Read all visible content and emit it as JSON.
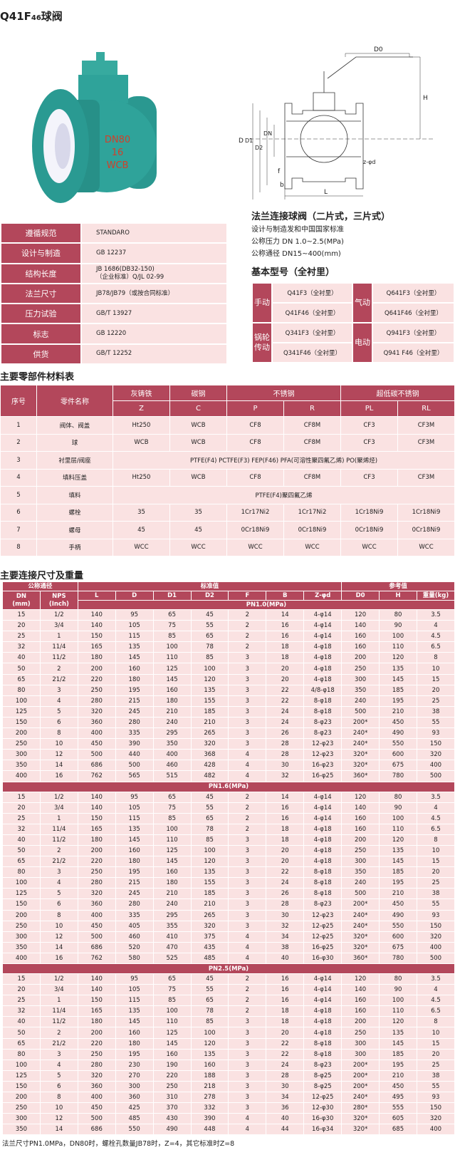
{
  "title": {
    "main": "Q41F",
    "sub": "46",
    "suffix": "球阀"
  },
  "photo": {
    "markings": [
      "DN80",
      "16",
      "WCB"
    ],
    "colors": {
      "body": "#2fa39a",
      "lining": "#f4f4fb",
      "marking": "#d0402a"
    }
  },
  "drawing": {
    "labels": {
      "d0": "D0",
      "h": "H",
      "d": "D",
      "d1": "D1",
      "d2": "D2",
      "dn": "DN",
      "f": "f",
      "b": "b",
      "l": "L",
      "zd": "z-φd"
    }
  },
  "spec": {
    "rows": [
      {
        "label": "遵循规范",
        "value": "STANDARO"
      },
      {
        "label": "设计与制造",
        "value": "GB 12237"
      },
      {
        "label": "结构长度",
        "value": "JB 1686(DB32-150)\n（企业标准）Q/JL 02-99"
      },
      {
        "label": "法兰尺寸",
        "value": "JB78/JB79（或按合同标准）"
      },
      {
        "label": "压力试验",
        "value": "GB/T 13927"
      },
      {
        "label": "标志",
        "value": "GB 12220"
      },
      {
        "label": "供货",
        "value": "GB/T 12252"
      }
    ]
  },
  "intro": {
    "heading": "法兰连接球阀（二片式，三片式）",
    "lines": [
      "设计与制造发和中国国家标准",
      "公称压力 DN 1.0~2.5(MPa)",
      "公称通径 DN15~400(mm)"
    ],
    "models_heading": "基本型号（全衬里）"
  },
  "models": [
    {
      "left_label": "手动",
      "left": [
        "Q41F3（全衬里）",
        "Q41F46（全衬里）"
      ],
      "right_label": "气动",
      "right": [
        "Q641F3（全衬里）",
        "Q641F46（全衬里）"
      ]
    },
    {
      "left_label": "锅轮传动",
      "left": [
        "Q341F3（全衬里）",
        "Q341F46（全衬里）"
      ],
      "right_label": "电动",
      "right": [
        "Q941F3（全衬里）",
        "Q941 F46（全衬里）"
      ]
    }
  ],
  "materials": {
    "heading": "主要零部件材料表",
    "header1": [
      "序号",
      "零件名称",
      "灰铸铁",
      "碳钢",
      "不锈钢",
      "超低碳不锈钢"
    ],
    "header2": [
      "Z",
      "C",
      "P",
      "R",
      "PL",
      "RL"
    ],
    "rows": [
      [
        "1",
        "阀体、阀盖",
        "Ht250",
        "WCB",
        "CF8",
        "CF8M",
        "CF3",
        "CF3M"
      ],
      [
        "2",
        "球",
        "WCB",
        "WCB",
        "CF8",
        "CF8M",
        "CF3",
        "CF3M"
      ],
      [
        "3",
        "衬里层/阀座",
        "PTFE(F4)  PCTFE(F3)  FEP(F46)   PFA(可溶性聚四氟乙烯)  PO(聚烯烃)"
      ],
      [
        "4",
        "填料压盖",
        "Ht250",
        "WCB",
        "CF8",
        "CF8M",
        "CF3",
        "CF3M"
      ],
      [
        "5",
        "填料",
        "PTFE(F4)聚四氟乙烯"
      ],
      [
        "6",
        "螺栓",
        "35",
        "35",
        "1Cr17Ni2",
        "1Cr17Ni2",
        "1Cr18Ni9",
        "1Cr18Ni9"
      ],
      [
        "7",
        "螺母",
        "45",
        "45",
        "0Cr18Ni9",
        "0Cr18Ni9",
        "0Cr18Ni9",
        "0Cr18Ni9"
      ],
      [
        "8",
        "手柄",
        "WCC",
        "WCC",
        "WCC",
        "WCC",
        "WCC",
        "WCC"
      ]
    ]
  },
  "dimensions": {
    "heading": "主要连接尺寸及重量",
    "group_headers": [
      "公称通径",
      "标准值",
      "参考值"
    ],
    "columns": [
      "DN\n(mm)",
      "NPS\n(Inch)",
      "L",
      "D",
      "D1",
      "D2",
      "F",
      "B",
      "Z-φd",
      "D0",
      "H",
      "重量(kg)"
    ],
    "sections": [
      {
        "label": "PN1.0(MPa)",
        "rows": [
          [
            "15",
            "1/2",
            "140",
            "95",
            "65",
            "45",
            "2",
            "14",
            "4-φ14",
            "120",
            "80",
            "3.5"
          ],
          [
            "20",
            "3/4",
            "140",
            "105",
            "75",
            "55",
            "2",
            "16",
            "4-φ14",
            "140",
            "90",
            "4"
          ],
          [
            "25",
            "1",
            "150",
            "115",
            "85",
            "65",
            "2",
            "16",
            "4-φ14",
            "160",
            "100",
            "4.5"
          ],
          [
            "32",
            "11/4",
            "165",
            "135",
            "100",
            "78",
            "2",
            "18",
            "4-φ18",
            "160",
            "110",
            "6.5"
          ],
          [
            "40",
            "11/2",
            "180",
            "145",
            "110",
            "85",
            "3",
            "18",
            "4-φ18",
            "200",
            "120",
            "8"
          ],
          [
            "50",
            "2",
            "200",
            "160",
            "125",
            "100",
            "3",
            "20",
            "4-φ18",
            "250",
            "135",
            "10"
          ],
          [
            "65",
            "21/2",
            "220",
            "180",
            "145",
            "120",
            "3",
            "20",
            "4-φ18",
            "300",
            "145",
            "15"
          ],
          [
            "80",
            "3",
            "250",
            "195",
            "160",
            "135",
            "3",
            "22",
            "4/8-φ18",
            "350",
            "185",
            "20"
          ],
          [
            "100",
            "4",
            "280",
            "215",
            "180",
            "155",
            "3",
            "22",
            "8-φ18",
            "240",
            "195",
            "25"
          ],
          [
            "125",
            "5",
            "320",
            "245",
            "210",
            "185",
            "3",
            "24",
            "8-φ18",
            "500",
            "210",
            "38"
          ],
          [
            "150",
            "6",
            "360",
            "280",
            "240",
            "210",
            "3",
            "24",
            "8-φ23",
            "200*",
            "450",
            "55"
          ],
          [
            "200",
            "8",
            "400",
            "335",
            "295",
            "265",
            "3",
            "26",
            "8-φ23",
            "240*",
            "490",
            "93"
          ],
          [
            "250",
            "10",
            "450",
            "390",
            "350",
            "320",
            "3",
            "28",
            "12-φ23",
            "240*",
            "550",
            "150"
          ],
          [
            "300",
            "12",
            "500",
            "440",
            "400",
            "368",
            "4",
            "28",
            "12-φ23",
            "320*",
            "600",
            "320"
          ],
          [
            "350",
            "14",
            "686",
            "500",
            "460",
            "428",
            "4",
            "30",
            "16-φ23",
            "320*",
            "675",
            "400"
          ],
          [
            "400",
            "16",
            "762",
            "565",
            "515",
            "482",
            "4",
            "32",
            "16-φ25",
            "360*",
            "780",
            "500"
          ]
        ]
      },
      {
        "label": "PN1.6(MPa)",
        "rows": [
          [
            "15",
            "1/2",
            "140",
            "95",
            "65",
            "45",
            "2",
            "14",
            "4-φ14",
            "120",
            "80",
            "3.5"
          ],
          [
            "20",
            "3/4",
            "140",
            "105",
            "75",
            "55",
            "2",
            "16",
            "4-φ14",
            "140",
            "90",
            "4"
          ],
          [
            "25",
            "1",
            "150",
            "115",
            "85",
            "65",
            "2",
            "16",
            "4-φ14",
            "160",
            "100",
            "4.5"
          ],
          [
            "32",
            "11/4",
            "165",
            "135",
            "100",
            "78",
            "2",
            "18",
            "4-φ18",
            "160",
            "110",
            "6.5"
          ],
          [
            "40",
            "11/2",
            "180",
            "145",
            "110",
            "85",
            "3",
            "18",
            "4-φ18",
            "200",
            "120",
            "8"
          ],
          [
            "50",
            "2",
            "200",
            "160",
            "125",
            "100",
            "3",
            "20",
            "4-φ18",
            "250",
            "135",
            "10"
          ],
          [
            "65",
            "21/2",
            "220",
            "180",
            "145",
            "120",
            "3",
            "20",
            "4-φ18",
            "300",
            "145",
            "15"
          ],
          [
            "80",
            "3",
            "250",
            "195",
            "160",
            "135",
            "3",
            "22",
            "8-φ18",
            "350",
            "185",
            "20"
          ],
          [
            "100",
            "4",
            "280",
            "215",
            "180",
            "155",
            "3",
            "24",
            "8-φ18",
            "240",
            "195",
            "25"
          ],
          [
            "125",
            "5",
            "320",
            "245",
            "210",
            "185",
            "3",
            "26",
            "8-φ18",
            "500",
            "210",
            "38"
          ],
          [
            "150",
            "6",
            "360",
            "280",
            "240",
            "210",
            "3",
            "28",
            "8-φ23",
            "200*",
            "450",
            "55"
          ],
          [
            "200",
            "8",
            "400",
            "335",
            "295",
            "265",
            "3",
            "30",
            "12-φ23",
            "240*",
            "490",
            "93"
          ],
          [
            "250",
            "10",
            "450",
            "405",
            "355",
            "320",
            "3",
            "32",
            "12-φ25",
            "240*",
            "550",
            "150"
          ],
          [
            "300",
            "12",
            "500",
            "460",
            "410",
            "375",
            "4",
            "34",
            "12-φ25",
            "320*",
            "600",
            "320"
          ],
          [
            "350",
            "14",
            "686",
            "520",
            "470",
            "435",
            "4",
            "38",
            "16-φ25",
            "320*",
            "675",
            "400"
          ],
          [
            "400",
            "16",
            "762",
            "580",
            "525",
            "485",
            "4",
            "40",
            "16-φ30",
            "360*",
            "780",
            "500"
          ]
        ]
      },
      {
        "label": "PN2.5(MPa)",
        "rows": [
          [
            "15",
            "1/2",
            "140",
            "95",
            "65",
            "45",
            "2",
            "16",
            "4-φ14",
            "120",
            "80",
            "3.5"
          ],
          [
            "20",
            "3/4",
            "140",
            "105",
            "75",
            "55",
            "2",
            "16",
            "4-φ14",
            "140",
            "90",
            "4"
          ],
          [
            "25",
            "1",
            "150",
            "115",
            "85",
            "65",
            "2",
            "16",
            "4-φ14",
            "160",
            "100",
            "4.5"
          ],
          [
            "32",
            "11/4",
            "165",
            "135",
            "100",
            "78",
            "2",
            "18",
            "4-φ18",
            "160",
            "110",
            "6.5"
          ],
          [
            "40",
            "11/2",
            "180",
            "145",
            "110",
            "85",
            "3",
            "18",
            "4-φ18",
            "200",
            "120",
            "8"
          ],
          [
            "50",
            "2",
            "200",
            "160",
            "125",
            "100",
            "3",
            "20",
            "4-φ18",
            "250",
            "135",
            "10"
          ],
          [
            "65",
            "21/2",
            "220",
            "180",
            "145",
            "120",
            "3",
            "22",
            "8-φ18",
            "300",
            "145",
            "15"
          ],
          [
            "80",
            "3",
            "250",
            "195",
            "160",
            "135",
            "3",
            "22",
            "8-φ18",
            "300",
            "185",
            "20"
          ],
          [
            "100",
            "4",
            "280",
            "230",
            "190",
            "160",
            "3",
            "24",
            "8-φ23",
            "200*",
            "195",
            "25"
          ],
          [
            "125",
            "5",
            "320",
            "270",
            "220",
            "188",
            "3",
            "28",
            "8-φ25",
            "200*",
            "210",
            "38"
          ],
          [
            "150",
            "6",
            "360",
            "300",
            "250",
            "218",
            "3",
            "30",
            "8-φ25",
            "200*",
            "450",
            "55"
          ],
          [
            "200",
            "8",
            "400",
            "360",
            "310",
            "278",
            "3",
            "34",
            "12-φ25",
            "240*",
            "495",
            "93"
          ],
          [
            "250",
            "10",
            "450",
            "425",
            "370",
            "332",
            "3",
            "36",
            "12-φ30",
            "280*",
            "555",
            "150"
          ],
          [
            "300",
            "12",
            "500",
            "485",
            "430",
            "390",
            "4",
            "40",
            "16-φ30",
            "320*",
            "605",
            "320"
          ],
          [
            "350",
            "14",
            "686",
            "550",
            "490",
            "448",
            "4",
            "44",
            "16-φ34",
            "320*",
            "685",
            "400"
          ]
        ]
      }
    ],
    "footnote": "法兰尺寸PN1.0MPa，DN80时，螺栓孔数量JB78时，Z=4，其它标准时Z=8"
  }
}
